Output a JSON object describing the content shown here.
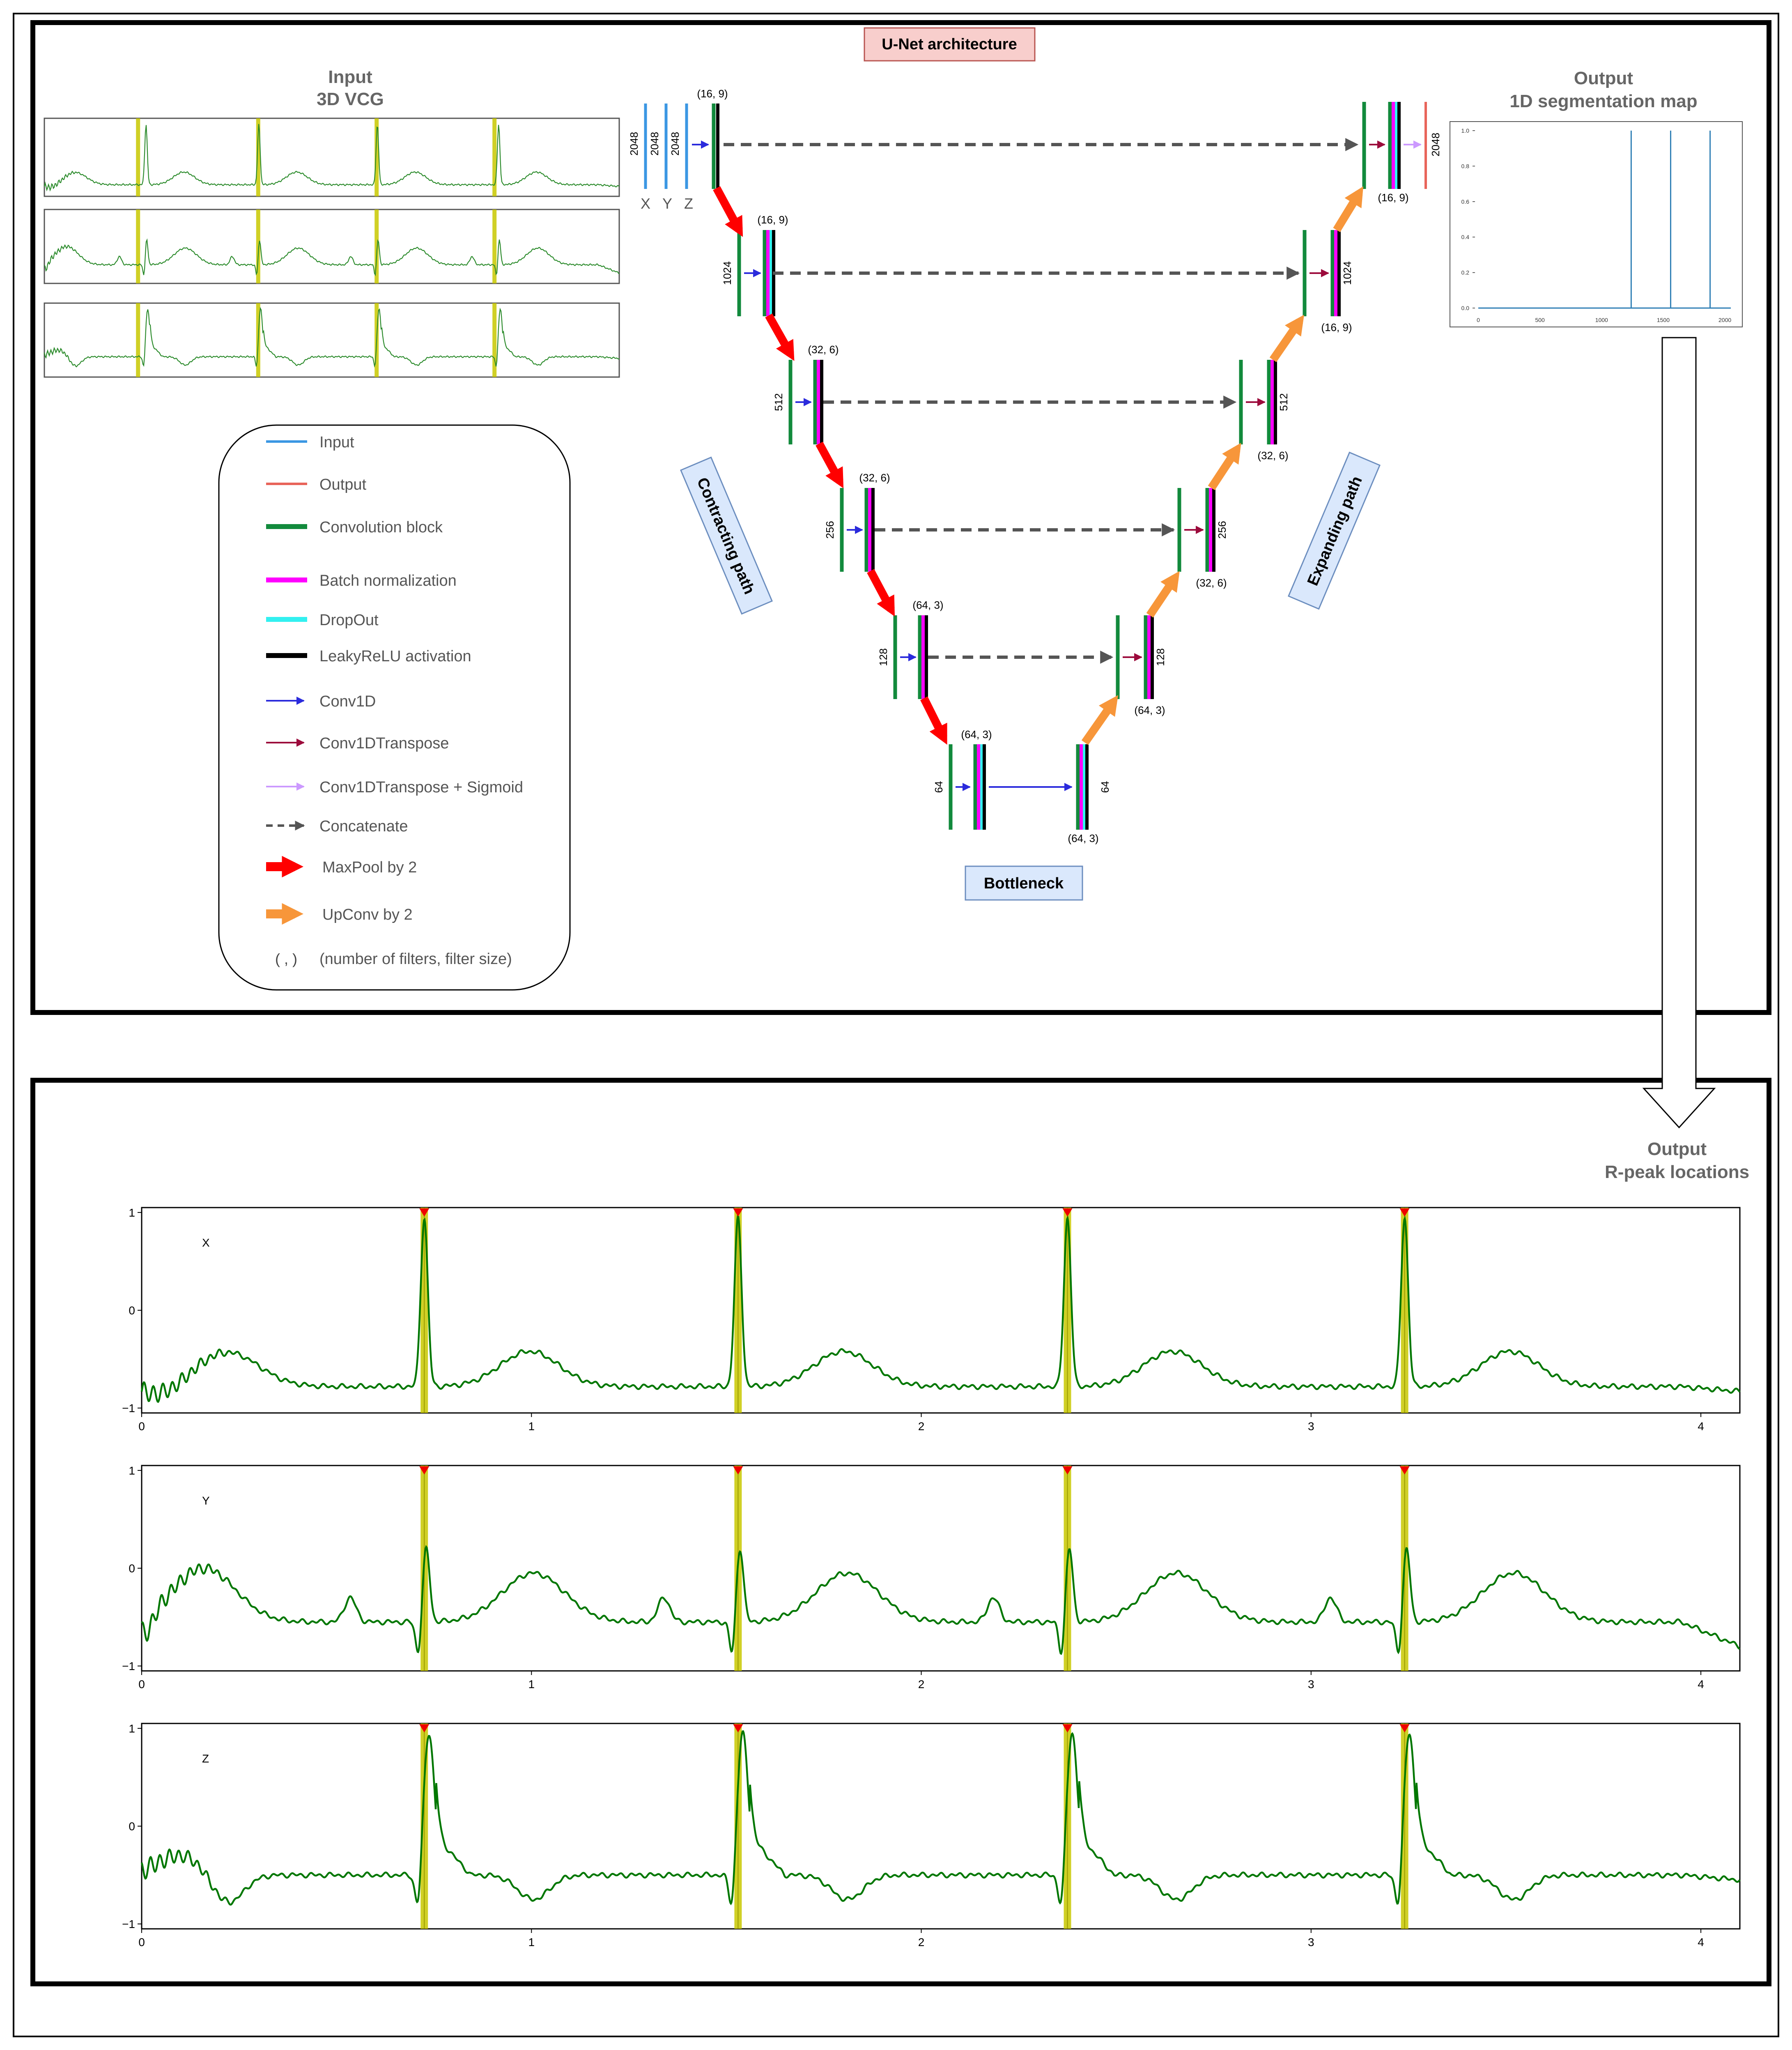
{
  "architecture_label": "U-Net architecture",
  "input": {
    "title": "Input",
    "subtitle": "3D VCG",
    "axes": [
      "X",
      "Y",
      "Z"
    ]
  },
  "output_top": {
    "title": "Output",
    "subtitle": "1D segmentation map",
    "yticks": [
      "0.0",
      "0.2",
      "0.4",
      "0.6",
      "0.8",
      "1.0"
    ],
    "xticks": [
      "0",
      "500",
      "1000",
      "1500",
      "2000"
    ]
  },
  "output_bottom": {
    "title": "Output",
    "subtitle": "R-peak locations"
  },
  "labels": {
    "contracting": "Contracting path",
    "expanding": "Expanding path",
    "bottleneck": "Bottleneck",
    "input_size": "2048",
    "sizes": [
      "1024",
      "512",
      "256",
      "128",
      "64"
    ],
    "filters": [
      "(16, 9)",
      "(16, 9)",
      "(32, 6)",
      "(32, 6)",
      "(64, 3)",
      "(64, 3)"
    ],
    "output_size": "2048"
  },
  "legend": [
    {
      "icon": "input-line-icon",
      "label": "Input",
      "color": "#3b97e3"
    },
    {
      "icon": "output-line-icon",
      "label": "Output",
      "color": "#e8645a"
    },
    {
      "icon": "convolution-block-icon",
      "label": "Convolution block",
      "color": "#128a3c"
    },
    {
      "icon": "batch-normalization-icon",
      "label": "Batch normalization",
      "color": "#ff00ff"
    },
    {
      "icon": "dropout-icon",
      "label": "DropOut",
      "color": "#33f0f0"
    },
    {
      "icon": "leakyrelu-icon",
      "label": "LeakyReLU activation",
      "color": "#000000"
    },
    {
      "icon": "conv1d-arrow-icon",
      "label": "Conv1D",
      "color": "#2b2bdc"
    },
    {
      "icon": "conv1dtranspose-arrow-icon",
      "label": "Conv1DTranspose",
      "color": "#9c0b3c"
    },
    {
      "icon": "conv1dtranspose-sigmoid-arrow-icon",
      "label": "Conv1DTranspose + Sigmoid",
      "color": "#cc99ff"
    },
    {
      "icon": "concatenate-arrow-icon",
      "label": "Concatenate",
      "color": "#555555"
    },
    {
      "icon": "maxpool-arrow-icon",
      "label": "MaxPool by 2",
      "color": "#ff0000"
    },
    {
      "icon": "upconv-arrow-icon",
      "label": "UpConv by 2",
      "color": "#f7963a"
    },
    {
      "icon": "parentheses-icon",
      "symbol": "( , )",
      "label": "(number of filters, filter size)",
      "color": "#333333"
    }
  ],
  "chart_data": [
    {
      "type": "line",
      "panel_label": "X",
      "xlim": [
        0,
        4.1
      ],
      "ylim": [
        -1.05,
        1.05
      ],
      "xticks": [
        "0",
        "1",
        "2",
        "3",
        "4"
      ],
      "yticks": [
        "1",
        "0",
        "−1"
      ],
      "r_peaks": [
        0.725,
        1.53,
        2.375,
        3.24
      ],
      "color": "#007700",
      "band_color": "#c8c800",
      "marker_color": "#ee0000"
    },
    {
      "type": "line",
      "panel_label": "Y",
      "xlim": [
        0,
        4.1
      ],
      "ylim": [
        -1.05,
        1.05
      ],
      "xticks": [
        "0",
        "1",
        "2",
        "3",
        "4"
      ],
      "yticks": [
        "1",
        "0",
        "−1"
      ],
      "r_peaks": [
        0.725,
        1.53,
        2.375,
        3.24
      ],
      "color": "#007700",
      "band_color": "#c8c800",
      "marker_color": "#ee0000"
    },
    {
      "type": "line",
      "panel_label": "Z",
      "xlim": [
        0,
        4.1
      ],
      "ylim": [
        -1.05,
        1.05
      ],
      "xticks": [
        "0",
        "1",
        "2",
        "3",
        "4"
      ],
      "yticks": [
        "1",
        "0",
        "−1"
      ],
      "r_peaks": [
        0.725,
        1.53,
        2.375,
        3.24
      ],
      "color": "#007700",
      "band_color": "#c8c800",
      "marker_color": "#ee0000"
    }
  ]
}
